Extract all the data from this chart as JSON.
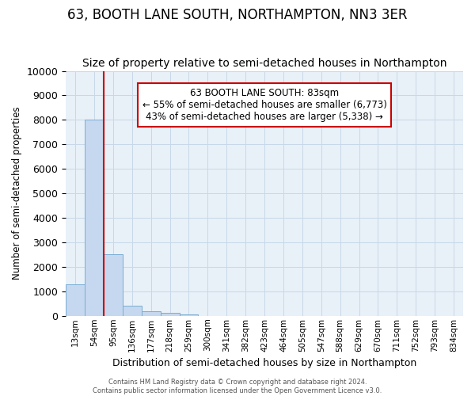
{
  "title": "63, BOOTH LANE SOUTH, NORTHAMPTON, NN3 3ER",
  "subtitle": "Size of property relative to semi-detached houses in Northampton",
  "xlabel": "Distribution of semi-detached houses by size in Northampton",
  "ylabel": "Number of semi-detached properties",
  "footer_line1": "Contains HM Land Registry data © Crown copyright and database right 2024.",
  "footer_line2": "Contains public sector information licensed under the Open Government Licence v3.0.",
  "bins": [
    "13sqm",
    "54sqm",
    "95sqm",
    "136sqm",
    "177sqm",
    "218sqm",
    "259sqm",
    "300sqm",
    "341sqm",
    "382sqm",
    "423sqm",
    "464sqm",
    "505sqm",
    "547sqm",
    "588sqm",
    "629sqm",
    "670sqm",
    "711sqm",
    "752sqm",
    "793sqm",
    "834sqm"
  ],
  "values": [
    1300,
    8000,
    2500,
    400,
    175,
    125,
    50,
    0,
    0,
    0,
    0,
    0,
    0,
    0,
    0,
    0,
    0,
    0,
    0,
    0,
    0
  ],
  "bar_color": "#c5d8ef",
  "bar_edge_color": "#7aadd4",
  "highlight_line_color": "#cc0000",
  "annotation_line1": "63 BOOTH LANE SOUTH: 83sqm",
  "annotation_line2": "← 55% of semi-detached houses are smaller (6,773)",
  "annotation_line3": "43% of semi-detached houses are larger (5,338) →",
  "annotation_box_color": "#cc0000",
  "ylim": [
    0,
    10000
  ],
  "yticks": [
    0,
    1000,
    2000,
    3000,
    4000,
    5000,
    6000,
    7000,
    8000,
    9000,
    10000
  ],
  "grid_color": "#c8d8e8",
  "bg_color": "#e8f0f8",
  "title_fontsize": 12,
  "subtitle_fontsize": 10
}
